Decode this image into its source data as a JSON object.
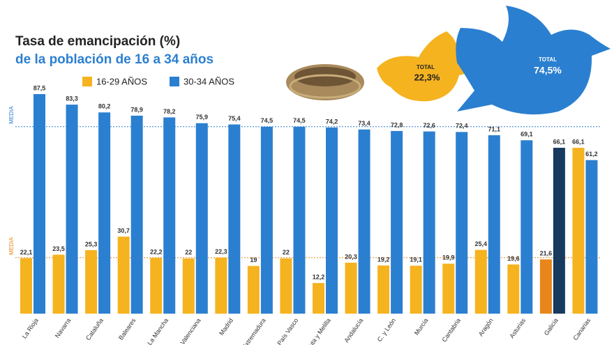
{
  "chart_data": {
    "type": "bar",
    "title": "Tasa de emancipación (%)",
    "subtitle": "de la población de 16 a 34 años",
    "categories": [
      "La Rioja",
      "Navarra",
      "Cataluña",
      "Baleares",
      "C.-La Mancha",
      "C. Valenciana",
      "Madrid",
      "Extremadura",
      "País Vasco",
      "Ceuta y Melilla",
      "Andalucía",
      "C. y León",
      "Murcia",
      "Cantabria",
      "Aragón",
      "Asturias",
      "Galicia",
      "Canarias"
    ],
    "series": [
      {
        "name": "16-29 AÑOS",
        "color": "#f5b320",
        "colors": [
          "#f5b320",
          "#f5b320",
          "#f5b320",
          "#f5b320",
          "#f5b320",
          "#f5b320",
          "#f5b320",
          "#f5b320",
          "#f5b320",
          "#f5b320",
          "#f5b320",
          "#f5b320",
          "#f5b320",
          "#f5b320",
          "#f5b320",
          "#f5b320",
          "#e8861a",
          "#f5b320"
        ],
        "values": [
          22.1,
          23.5,
          25.3,
          30.7,
          22.2,
          22,
          22.3,
          19,
          22,
          12.2,
          20.3,
          19.2,
          19.1,
          19.9,
          25.4,
          19.6,
          21.6,
          66.1
        ],
        "value_labels": [
          "22,1",
          "23,5",
          "25,3",
          "30,7",
          "22,2",
          "22",
          "22,3",
          "19",
          "22",
          "12,2",
          "20,3",
          "19,2",
          "19,1",
          "19,9",
          "25,4",
          "19,6",
          "21,6",
          "66,1"
        ]
      },
      {
        "name": "30-34 AÑOS",
        "color": "#2b7fd0",
        "colors": [
          "#2b7fd0",
          "#2b7fd0",
          "#2b7fd0",
          "#2b7fd0",
          "#2b7fd0",
          "#2b7fd0",
          "#2b7fd0",
          "#2b7fd0",
          "#2b7fd0",
          "#2b7fd0",
          "#2b7fd0",
          "#2b7fd0",
          "#2b7fd0",
          "#2b7fd0",
          "#2b7fd0",
          "#2b7fd0",
          "#173a5e",
          "#2b7fd0"
        ],
        "values": [
          87.5,
          83.3,
          80.2,
          78.9,
          78.2,
          75.9,
          75.4,
          74.5,
          74.5,
          74.2,
          73.4,
          72.8,
          72.6,
          72.4,
          71.1,
          69.1,
          66.1,
          61.2
        ],
        "value_labels": [
          "87,5",
          "83,3",
          "80,2",
          "78,9",
          "78,2",
          "75,9",
          "75,4",
          "74,5",
          "74,5",
          "74,2",
          "73,4",
          "72,8",
          "72,6",
          "72,4",
          "71,1",
          "69,1",
          "66,1",
          "61,2"
        ]
      }
    ],
    "totals": [
      {
        "label": "TOTAL",
        "value": 22.3,
        "value_label": "22,3%",
        "line_label": "MEDIA",
        "color": "#e8861a"
      },
      {
        "label": "TOTAL",
        "value": 74.5,
        "value_label": "74,5%",
        "line_label": "MEDIA",
        "color": "#2b7fd0"
      }
    ]
  }
}
